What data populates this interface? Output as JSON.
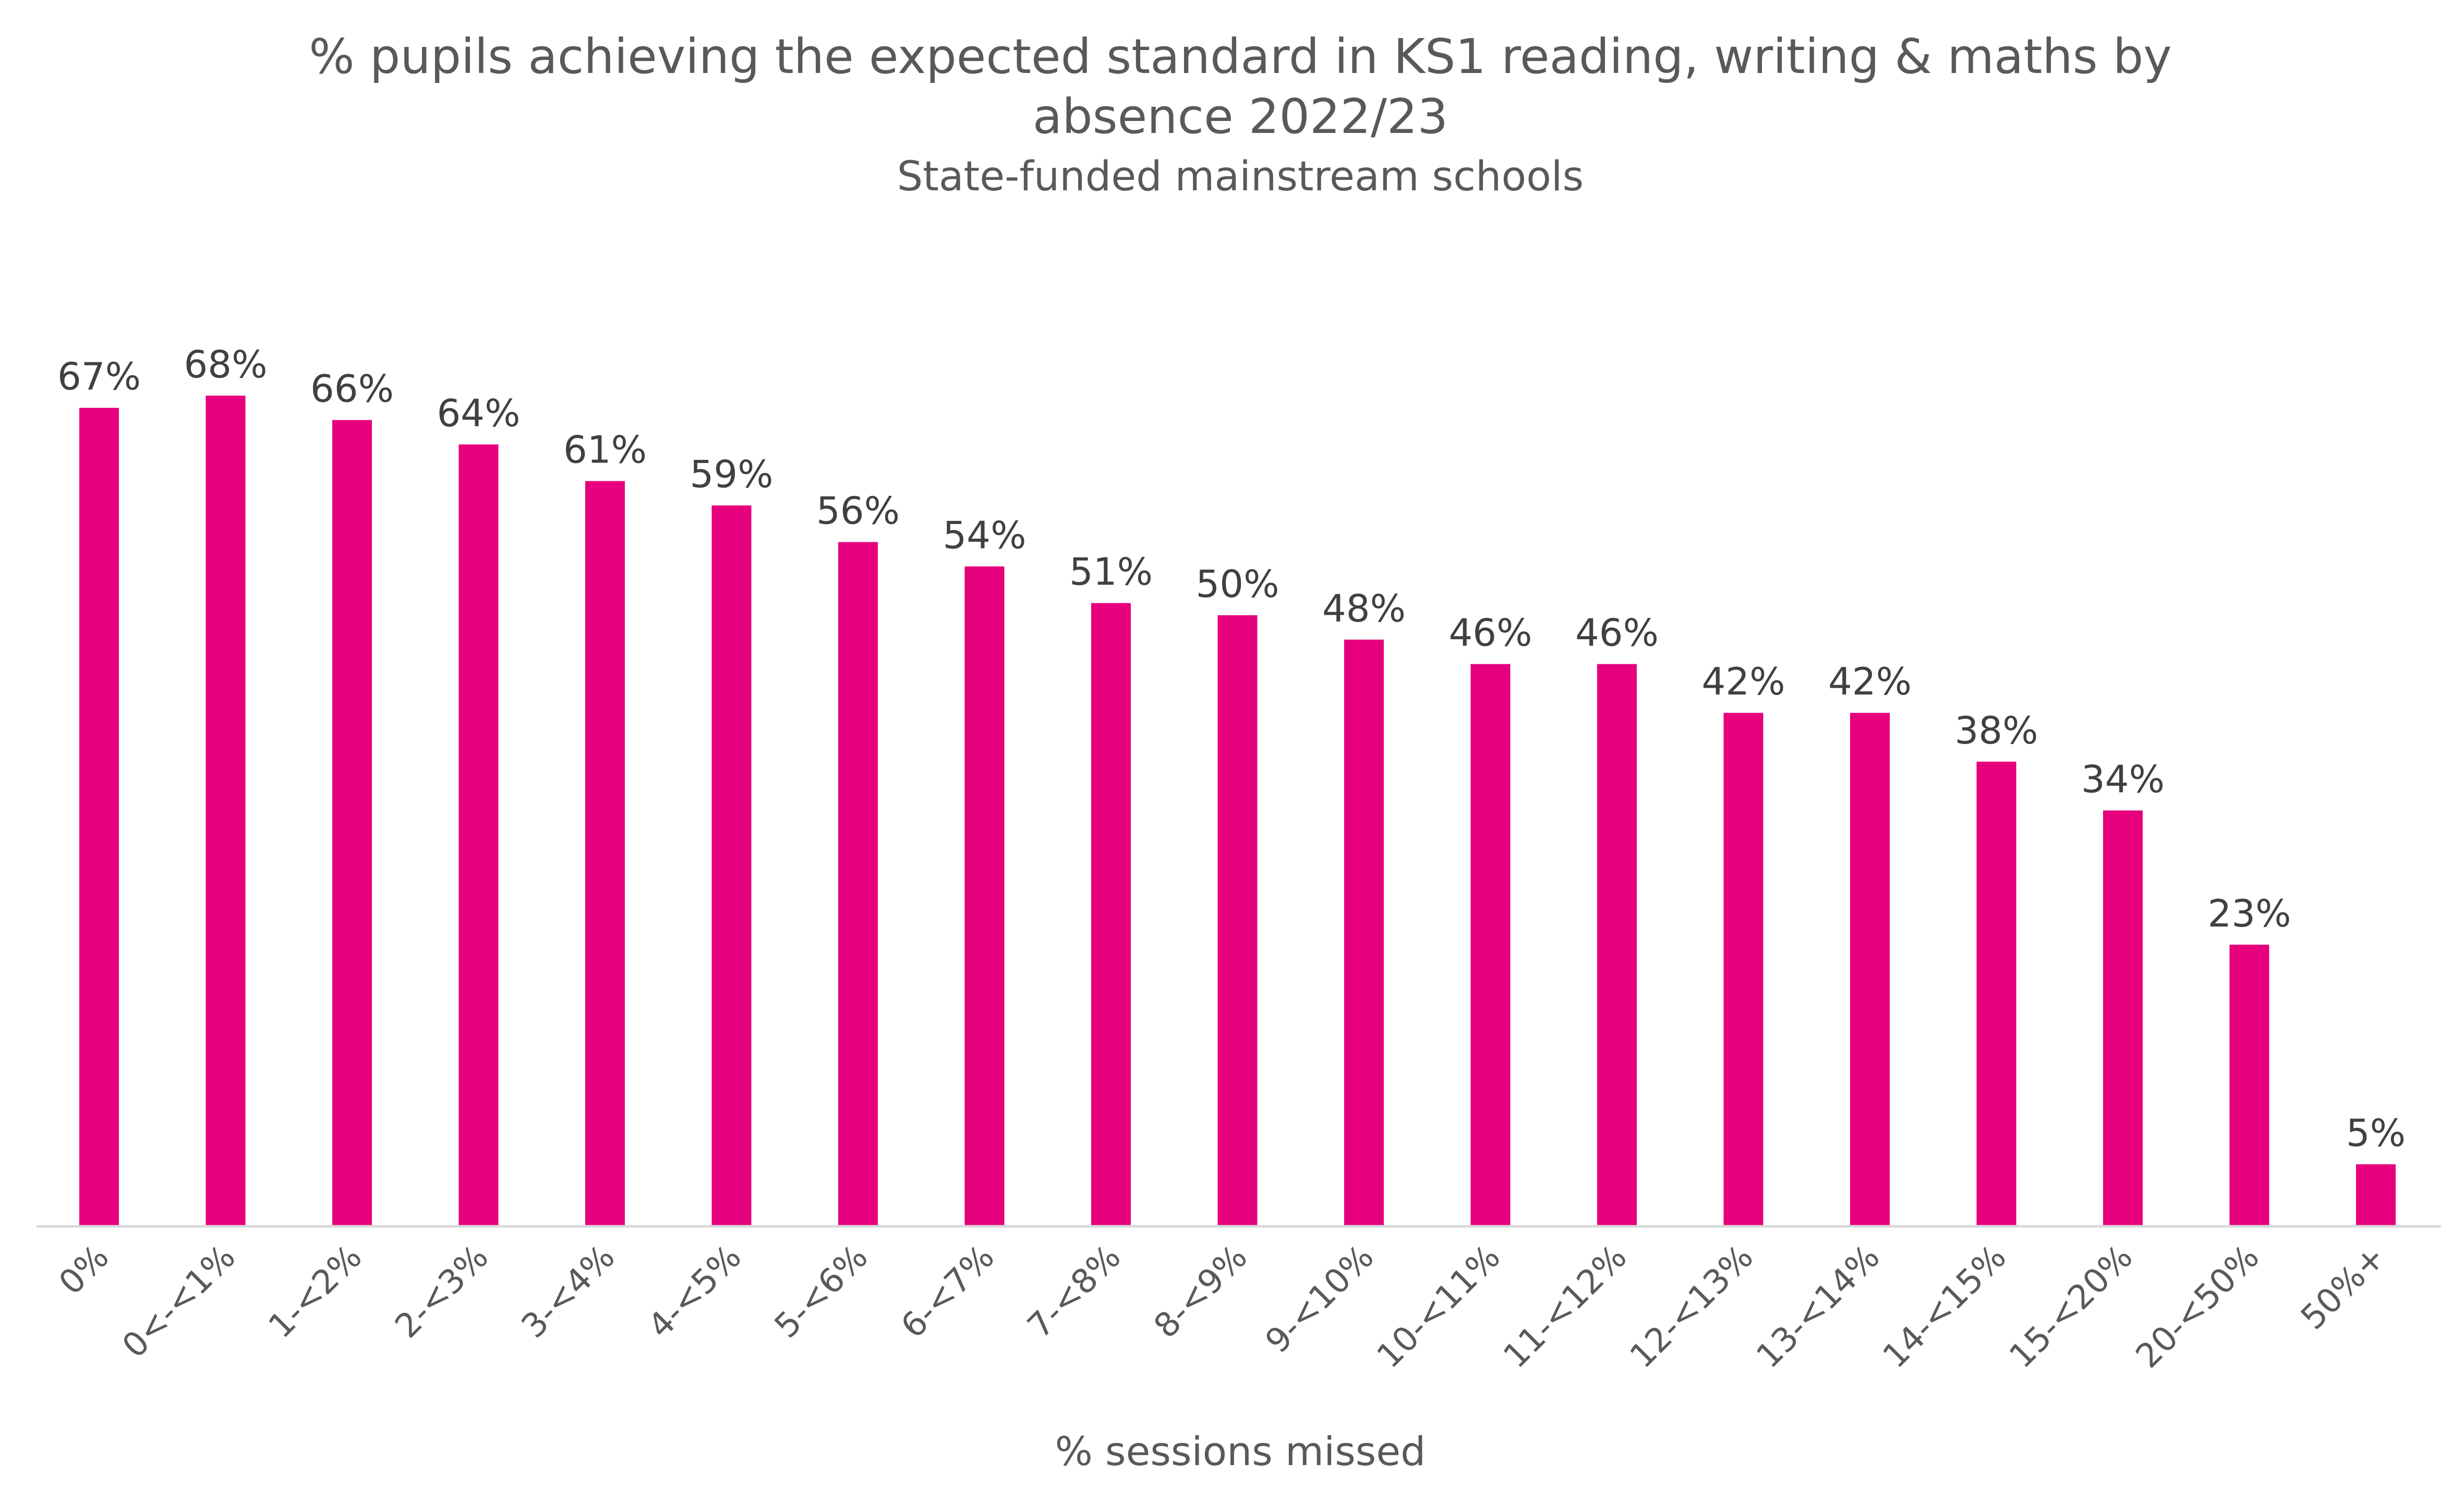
{
  "chart_data": {
    "type": "bar",
    "title_lines": [
      "% pupils achieving the expected standard in KS1 reading, writing & maths by",
      "absence 2022/23"
    ],
    "subtitle": "State-funded mainstream schools",
    "xlabel": "% sessions missed",
    "ylabel": "",
    "categories": [
      "0%",
      "0<-<1%",
      "1-<2%",
      "2-<3%",
      "3-<4%",
      "4-<5%",
      "5-<6%",
      "6-<7%",
      "7-<8%",
      "8-<9%",
      "9-<10%",
      "10-<11%",
      "11-<12%",
      "12-<13%",
      "13-<14%",
      "14-<15%",
      "15-<20%",
      "20-<50%",
      "50%+"
    ],
    "values": [
      67,
      68,
      66,
      64,
      61,
      59,
      56,
      54,
      51,
      50,
      48,
      46,
      46,
      42,
      42,
      38,
      34,
      23,
      5
    ],
    "data_labels": [
      "67%",
      "68%",
      "66%",
      "64%",
      "61%",
      "59%",
      "56%",
      "54%",
      "51%",
      "50%",
      "48%",
      "46%",
      "46%",
      "42%",
      "42%",
      "38%",
      "34%",
      "23%",
      "5%"
    ],
    "ylim": [
      0,
      100
    ],
    "grid": false,
    "legend": "none",
    "colors": {
      "bar": "#E6007E",
      "axis": "#D9D9D9",
      "text": "#595959"
    }
  }
}
